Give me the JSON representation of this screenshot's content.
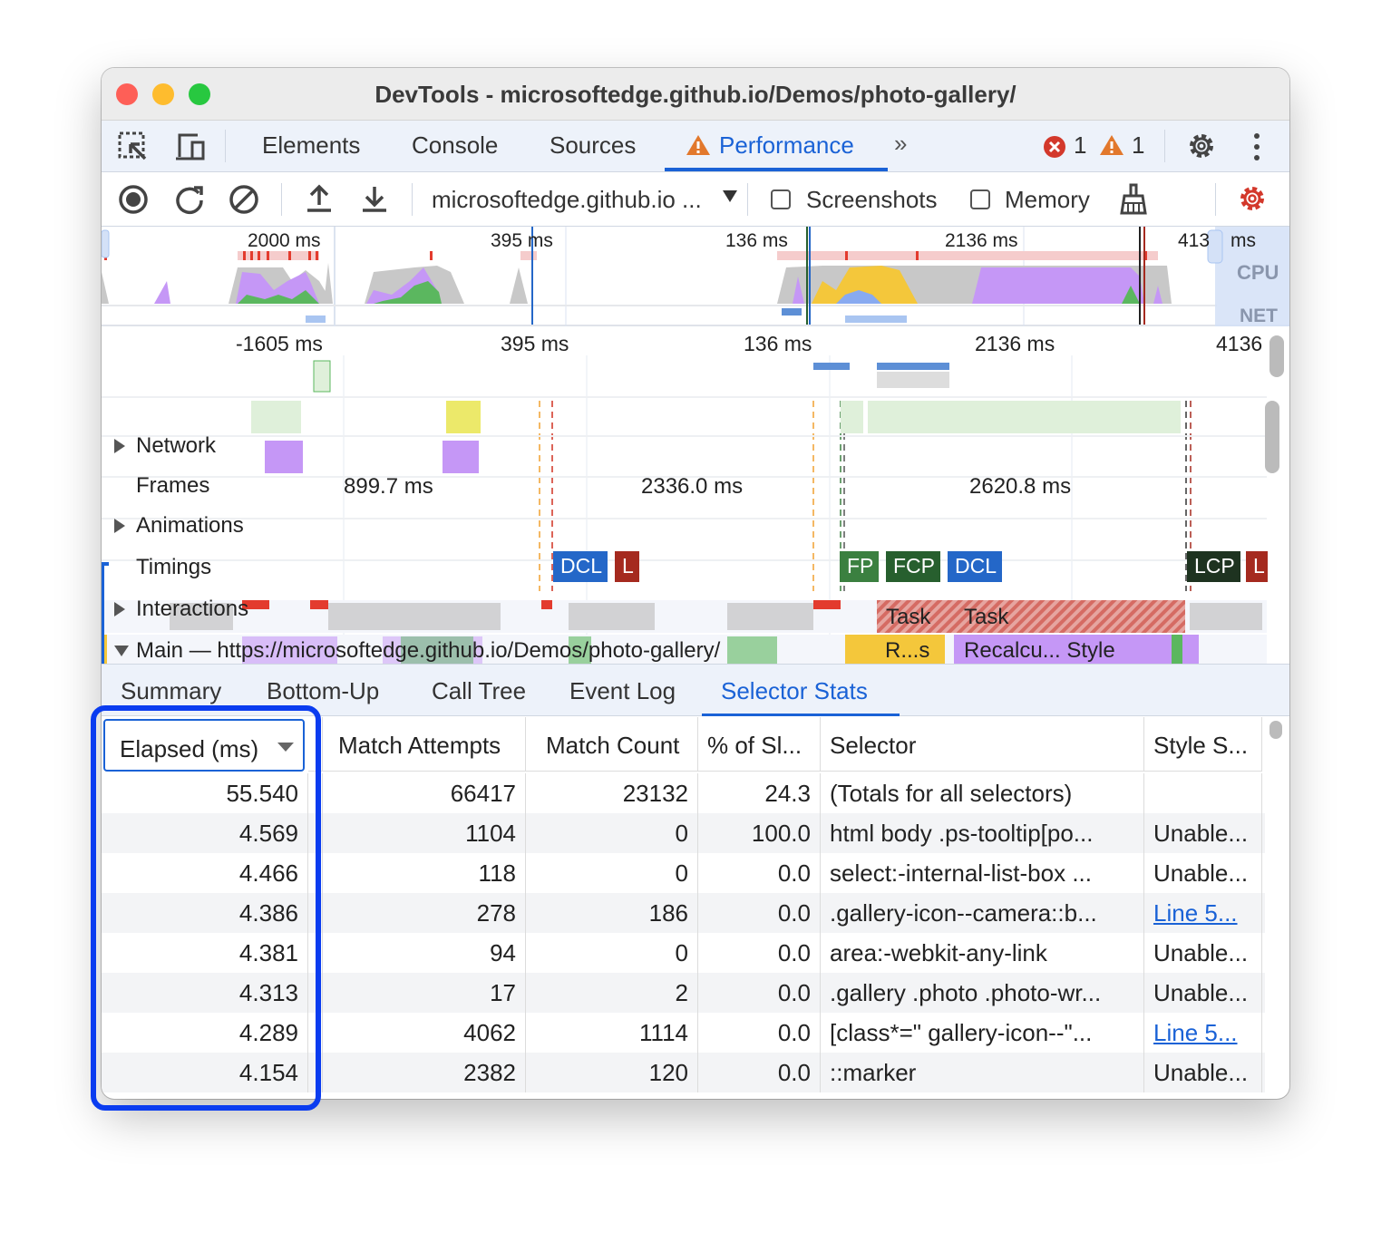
{
  "window": {
    "title": "DevTools - microsoftedge.github.io/Demos/photo-gallery/"
  },
  "tabs": [
    {
      "label": "Elements"
    },
    {
      "label": "Console"
    },
    {
      "label": "Sources"
    },
    {
      "label": "Performance",
      "active": true,
      "icon": "warning-icon"
    }
  ],
  "status": {
    "errors": "1",
    "warnings": "1"
  },
  "toolbar": {
    "target": "microsoftedge.github.io ...",
    "screenshots": "Screenshots",
    "memory": "Memory",
    "screenshots_checked": false,
    "memory_checked": false
  },
  "overview": {
    "labels": [
      "2000 ms",
      "395 ms",
      "136 ms",
      "2136 ms",
      "413",
      "ms"
    ],
    "cpu": "CPU",
    "net": "NET"
  },
  "ruler": [
    "-1605 ms",
    "395 ms",
    "136 ms",
    "2136 ms",
    "4136"
  ],
  "tracks": {
    "network": "Network",
    "frames": "Frames",
    "frame_times": [
      "899.7 ms",
      "2336.0 ms",
      "2620.8 ms"
    ],
    "animations": "Animations",
    "timings": "Timings",
    "interactions": "Interactions",
    "main": "Main — https://microsoftedge.github.io/Demos/photo-gallery/",
    "markers": [
      {
        "label": "DCL",
        "color": "#2467c8"
      },
      {
        "label": "L",
        "color": "#a52a1f"
      },
      {
        "label": "FP",
        "color": "#3b8040"
      },
      {
        "label": "FCP",
        "color": "#275f2e"
      },
      {
        "label": "DCL",
        "color": "#2467c8"
      },
      {
        "label": "LCP",
        "color": "#1e3320"
      },
      {
        "label": "L",
        "color": "#a52a1f"
      }
    ],
    "tasks": [
      "Task",
      "Task"
    ],
    "subtasks": [
      "R...s",
      "Recalcu... Style"
    ]
  },
  "bottom_tabs": [
    {
      "label": "Summary"
    },
    {
      "label": "Bottom-Up"
    },
    {
      "label": "Call Tree"
    },
    {
      "label": "Event Log"
    },
    {
      "label": "Selector Stats",
      "active": true
    }
  ],
  "table": {
    "columns": [
      "Elapsed (ms)",
      "Match Attempts",
      "Match Count",
      "% of Sl...",
      "Selector",
      "Style S..."
    ],
    "sort_column": "Elapsed (ms)",
    "sort": "descending",
    "rows": [
      [
        "55.540",
        "66417",
        "23132",
        "24.3",
        "(Totals for all selectors)",
        ""
      ],
      [
        "4.569",
        "1104",
        "0",
        "100.0",
        "html body .ps-tooltip[po...",
        "Unable..."
      ],
      [
        "4.466",
        "118",
        "0",
        "0.0",
        "select:-internal-list-box ...",
        "Unable..."
      ],
      [
        "4.386",
        "278",
        "186",
        "0.0",
        ".gallery-icon--camera::b...",
        "Line 5..."
      ],
      [
        "4.381",
        "94",
        "0",
        "0.0",
        "area:-webkit-any-link",
        "Unable..."
      ],
      [
        "4.313",
        "17",
        "2",
        "0.0",
        ".gallery .photo .photo-wr...",
        "Unable..."
      ],
      [
        "4.289",
        "4062",
        "1114",
        "0.0",
        "[class*=\" gallery-icon--\"...",
        "Line 5..."
      ],
      [
        "4.154",
        "2382",
        "120",
        "0.0",
        "::marker",
        "Unable..."
      ]
    ]
  },
  "colors": {
    "accent": "#1a62d6",
    "highlight": "#0a3cf0",
    "scripting": "#f4c73b",
    "rendering": "#c597f6",
    "painting": "#5bb75f",
    "system": "#c8c8c8"
  }
}
